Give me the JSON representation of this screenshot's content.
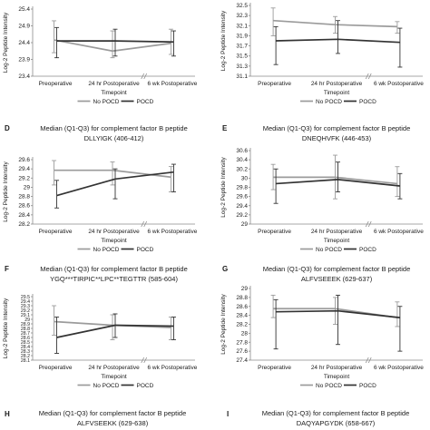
{
  "colors": {
    "no_pocd": "#9b9b9b",
    "pocd": "#333333",
    "axis": "#8a8a8a"
  },
  "legend": {
    "no_pocd": "No POCD",
    "pocd": "POCD"
  },
  "xlabel": "Timepoint",
  "ylabel": "Log-2 Peptide Intensity",
  "categories": [
    "Preoperative",
    "24 hr Postoperative",
    "6 wk Postoperative"
  ],
  "panel_letters": {
    "D": "D",
    "E": "E",
    "F": "F",
    "G": "G",
    "H": "H",
    "I": "I"
  },
  "bottom_titles": [
    {
      "letter": "H",
      "line1": "Median (Q1-Q3) for complement factor B peptide",
      "line2": "ALFVSEEKK (629-638)"
    },
    {
      "letter": "I",
      "line1": "Median (Q1-Q3) for complement factor B peptide",
      "line2": "DAQYAPGYDK (658-667)"
    }
  ],
  "chart_data": [
    {
      "type": "line",
      "panel": "top-left",
      "title_lines": [],
      "yticks": [
        "25.4",
        "24.9",
        "24.4",
        "23.9",
        "23.4"
      ],
      "ylim": [
        23.4,
        25.4
      ],
      "series": [
        {
          "name": "No POCD",
          "values": [
            24.48,
            24.15,
            24.38
          ],
          "low": [
            24.1,
            23.95,
            24.05
          ],
          "high": [
            25.05,
            24.75,
            24.8
          ]
        },
        {
          "name": "POCD",
          "values": [
            24.45,
            24.45,
            24.42
          ],
          "low": [
            23.95,
            24.0,
            24.0
          ],
          "high": [
            24.85,
            24.8,
            24.75
          ]
        }
      ]
    },
    {
      "type": "line",
      "panel": "top-right",
      "title_lines": [],
      "yticks": [
        "32.5",
        "32.3",
        "32.1",
        "31.9",
        "31.7",
        "31.5",
        "31.3",
        "31.1"
      ],
      "ylim": [
        31.1,
        32.5
      ],
      "series": [
        {
          "name": "No POCD",
          "values": [
            32.2,
            32.12,
            32.08
          ],
          "low": [
            31.9,
            31.95,
            31.95
          ],
          "high": [
            32.45,
            32.28,
            32.18
          ]
        },
        {
          "name": "POCD",
          "values": [
            31.8,
            31.83,
            31.77
          ],
          "low": [
            31.33,
            31.55,
            31.28
          ],
          "high": [
            32.08,
            32.2,
            32.05
          ]
        }
      ]
    },
    {
      "type": "line",
      "panel": "D",
      "title_lines": [
        "Median (Q1-Q3) for complement factor B peptide",
        "DLLYIGK (406-412)"
      ],
      "yticks": [
        "29.6",
        "29.4",
        "29.2",
        "29",
        "28.8",
        "28.6",
        "28.4",
        "28.2"
      ],
      "ylim": [
        28.2,
        29.6
      ],
      "series": [
        {
          "name": "No POCD",
          "values": [
            29.37,
            29.37,
            29.22
          ],
          "low": [
            29.05,
            29.05,
            28.9
          ],
          "high": [
            29.58,
            29.55,
            29.45
          ]
        },
        {
          "name": "POCD",
          "values": [
            28.82,
            29.18,
            29.33
          ],
          "low": [
            28.55,
            28.75,
            28.9
          ],
          "high": [
            29.15,
            29.4,
            29.5
          ]
        }
      ]
    },
    {
      "type": "line",
      "panel": "E",
      "title_lines": [
        "Median (Q1-Q3) for complement factor B peptide",
        "DNEQHVFK (446-453)"
      ],
      "yticks": [
        "30.6",
        "30.4",
        "30.2",
        "30",
        "29.8",
        "29.6",
        "29.4",
        "29.2",
        "29"
      ],
      "ylim": [
        29.0,
        30.6
      ],
      "series": [
        {
          "name": "No POCD",
          "values": [
            30.02,
            30.02,
            29.88
          ],
          "low": [
            29.75,
            29.55,
            29.6
          ],
          "high": [
            30.3,
            30.5,
            30.25
          ]
        },
        {
          "name": "POCD",
          "values": [
            29.88,
            29.97,
            29.83
          ],
          "low": [
            29.45,
            29.7,
            29.55
          ],
          "high": [
            30.2,
            30.35,
            30.1
          ]
        }
      ]
    },
    {
      "type": "line",
      "panel": "F",
      "title_lines": [
        "Median (Q1-Q3) for complement factor B peptide",
        "YGQ***TIRPIC**LPC**TEGTTR (585-604)"
      ],
      "yticks": [
        "29.5",
        "29.4",
        "29.3",
        "29.2",
        "29.1",
        "29",
        "28.9",
        "28.8",
        "28.7",
        "28.6",
        "28.5",
        "28.4",
        "28.3",
        "28.2",
        "28.1"
      ],
      "ylim": [
        28.1,
        29.5
      ],
      "series": [
        {
          "name": "No POCD",
          "values": [
            28.95,
            28.87,
            28.82
          ],
          "low": [
            28.65,
            28.55,
            28.55
          ],
          "high": [
            29.3,
            29.1,
            29.05
          ]
        },
        {
          "name": "POCD",
          "values": [
            28.6,
            28.87,
            28.85
          ],
          "low": [
            28.25,
            28.6,
            28.55
          ],
          "high": [
            29.05,
            29.12,
            29.05
          ]
        }
      ]
    },
    {
      "type": "line",
      "panel": "G",
      "title_lines": [
        "Median (Q1-Q3) for complement factor B peptide",
        "ALFVSEEEK (629-637)"
      ],
      "yticks": [
        "29",
        "28.8",
        "28.6",
        "28.4",
        "28.2",
        "28",
        "27.8",
        "27.6",
        "27.4"
      ],
      "ylim": [
        27.4,
        29.0
      ],
      "series": [
        {
          "name": "No POCD",
          "values": [
            28.55,
            28.55,
            28.35
          ],
          "low": [
            28.35,
            28.2,
            28.15
          ],
          "high": [
            28.85,
            28.8,
            28.7
          ]
        },
        {
          "name": "POCD",
          "values": [
            28.48,
            28.5,
            28.35
          ],
          "low": [
            27.65,
            27.75,
            27.6
          ],
          "high": [
            28.75,
            28.85,
            28.6
          ]
        }
      ]
    }
  ]
}
